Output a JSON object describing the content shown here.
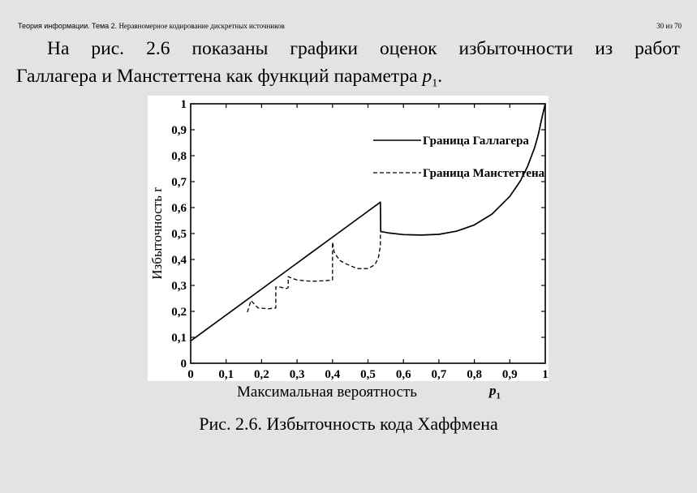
{
  "header": {
    "course": "Теория информации.",
    "topic": "Тема 2.",
    "subtitle": "Неравномерное кодирование дискретных источников",
    "page_number": "30 из 70"
  },
  "paragraph": {
    "line1": "На рис. 2.6 показаны графики оценок избыточности из работ",
    "line2_text": "Галлагера и Манстеттена как функций параметра ",
    "var_letter": "p",
    "var_sub": "1",
    "line2_end": "."
  },
  "figure": {
    "xlabel_text": "Максимальная вероятность",
    "xlabel_var": "p",
    "xlabel_var_sub": "1",
    "caption": "Рис. 2.6. Избыточность кода Хаффмена"
  },
  "chart_data": {
    "type": "line",
    "ylabel": "Избыточность r",
    "xlim": [
      0,
      1
    ],
    "ylim": [
      0,
      1
    ],
    "x_ticks": [
      "0",
      "0,1",
      "0,2",
      "0,3",
      "0,4",
      "0,5",
      "0,6",
      "0,7",
      "0,8",
      "0,9",
      "1"
    ],
    "y_ticks": [
      "0",
      "0,1",
      "0,2",
      "0,3",
      "0,4",
      "0,5",
      "0,6",
      "0,7",
      "0,8",
      "0,9",
      "1"
    ],
    "grid": false,
    "legend_position": "top-right",
    "series": [
      {
        "name": "Граница Галлагера",
        "style": "solid",
        "x": [
          0,
          0.1,
          0.2,
          0.3,
          0.4,
          0.5,
          0.535,
          0.536,
          0.56,
          0.6,
          0.65,
          0.7,
          0.75,
          0.8,
          0.85,
          0.9,
          0.93,
          0.95,
          0.97,
          0.98,
          0.99,
          1.0
        ],
        "y": [
          0.086,
          0.186,
          0.286,
          0.386,
          0.486,
          0.586,
          0.621,
          0.508,
          0.502,
          0.496,
          0.494,
          0.497,
          0.509,
          0.533,
          0.575,
          0.643,
          0.703,
          0.758,
          0.831,
          0.88,
          0.942,
          1.0
        ]
      },
      {
        "name": "Граница Манстеттена",
        "style": "dashed",
        "x": [
          0.16,
          0.17,
          0.19,
          0.22,
          0.24,
          0.24,
          0.25,
          0.27,
          0.275,
          0.275,
          0.28,
          0.3,
          0.34,
          0.38,
          0.4,
          0.4,
          0.405,
          0.42,
          0.44,
          0.47,
          0.5,
          0.52,
          0.53,
          0.535,
          0.535,
          0.537
        ],
        "y": [
          0.197,
          0.242,
          0.213,
          0.21,
          0.213,
          0.294,
          0.294,
          0.288,
          0.292,
          0.334,
          0.331,
          0.321,
          0.316,
          0.318,
          0.321,
          0.467,
          0.427,
          0.397,
          0.382,
          0.365,
          0.365,
          0.38,
          0.41,
          0.455,
          0.502,
          0.508
        ]
      }
    ]
  }
}
